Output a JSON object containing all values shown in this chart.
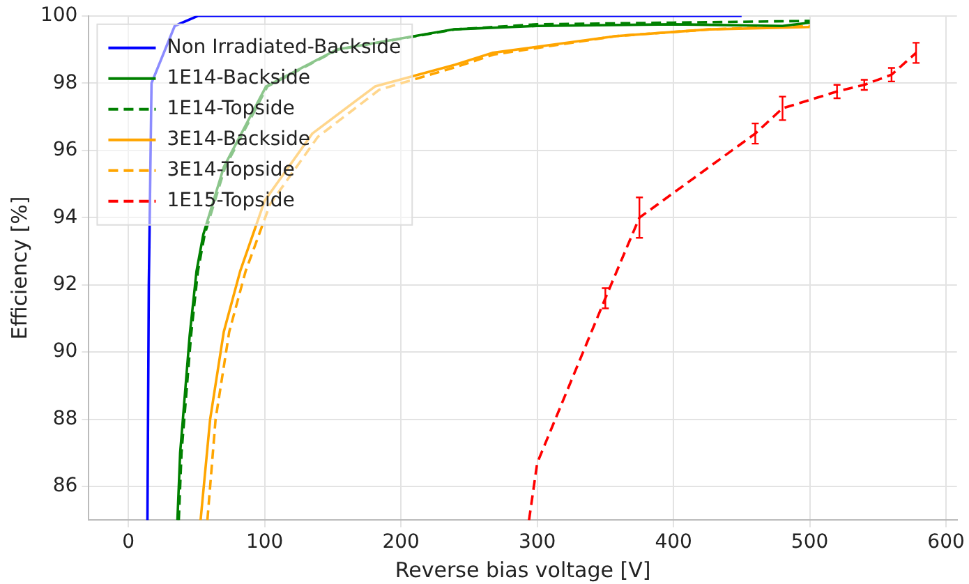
{
  "chart_data": {
    "type": "line",
    "xlabel": "Reverse bias voltage [V]",
    "ylabel": "Efficiency [%]",
    "xlim": [
      -29,
      608
    ],
    "xticks": [
      0,
      100,
      200,
      300,
      400,
      500,
      600
    ],
    "ylim": [
      85,
      100
    ],
    "yticks": [
      86,
      88,
      90,
      92,
      94,
      96,
      98,
      100
    ],
    "grid": true,
    "legend": "top left",
    "marker": "none",
    "series": [
      {
        "name": "Non Irradiated-Backside",
        "color": "#0000ff",
        "line_style": "solid",
        "x": [
          14,
          15,
          17,
          34,
          51,
          450
        ],
        "values": [
          85,
          92,
          98,
          99.7,
          100,
          100
        ]
      },
      {
        "name": "1E14-Backside",
        "color": "#008000",
        "line_style": "solid",
        "x": [
          36,
          38,
          41,
          45,
          50,
          55,
          70,
          101,
          153,
          239,
          300,
          400,
          480,
          500
        ],
        "values": [
          85,
          87,
          88.5,
          90.5,
          92.4,
          93.5,
          95.5,
          97.9,
          99,
          99.6,
          99.7,
          99.75,
          99.7,
          99.8
        ]
      },
      {
        "name": "1E14-Topside",
        "color": "#008000",
        "line_style": "dashed",
        "x": [
          37,
          39,
          42,
          46,
          51,
          56,
          71,
          102,
          154,
          240,
          300,
          400,
          500
        ],
        "values": [
          85,
          87,
          88.5,
          90.5,
          92.4,
          93.5,
          95.5,
          97.9,
          99,
          99.6,
          99.75,
          99.8,
          99.85
        ]
      },
      {
        "name": "3E14-Backside",
        "color": "#ffa500",
        "line_style": "solid",
        "x": [
          53,
          60,
          70,
          82,
          100,
          135,
          181,
          240,
          267,
          358,
          427,
          500
        ],
        "values": [
          85,
          88,
          90.6,
          92.4,
          94.5,
          96.5,
          97.9,
          98.55,
          98.9,
          99.4,
          99.6,
          99.67
        ]
      },
      {
        "name": "3E14-Topside",
        "color": "#ffa500",
        "line_style": "dashed",
        "x": [
          58,
          64,
          74,
          86,
          104,
          139,
          184,
          242,
          268,
          358,
          427,
          500
        ],
        "values": [
          85,
          88,
          90.6,
          92.4,
          94.4,
          96.4,
          97.8,
          98.5,
          98.85,
          99.4,
          99.6,
          99.7
        ]
      },
      {
        "name": "1E15-Topside",
        "color": "#ff0000",
        "line_style": "dashed",
        "x": [
          294,
          300,
          350,
          375,
          460,
          480,
          520,
          540,
          560,
          578
        ],
        "values": [
          85,
          86.7,
          91.6,
          94.0,
          96.5,
          97.25,
          97.75,
          97.95,
          98.25,
          98.9
        ],
        "errors": [
          null,
          null,
          0.3,
          0.6,
          0.3,
          0.35,
          0.2,
          0.15,
          0.2,
          0.3
        ]
      }
    ]
  }
}
